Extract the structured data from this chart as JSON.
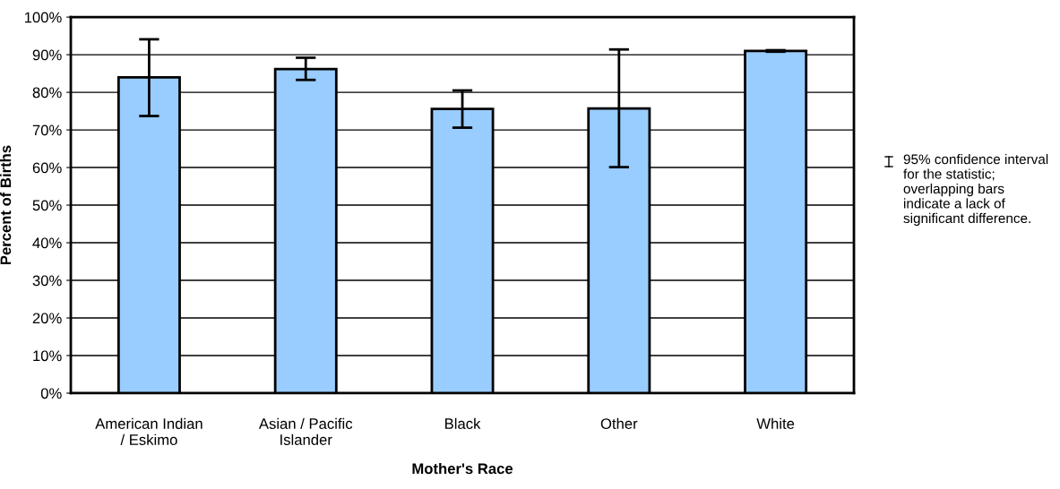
{
  "chart_data": {
    "type": "bar",
    "xlabel": "Mother's Race",
    "ylabel": "Percent of Births",
    "categories": [
      "American Indian / Eskimo",
      "Asian / Pacific Islander",
      "Black",
      "Other",
      "White"
    ],
    "values": [
      84.0,
      86.2,
      75.6,
      75.7,
      91.0
    ],
    "errors": [
      [
        73.7,
        94.1
      ],
      [
        83.3,
        89.2
      ],
      [
        70.6,
        80.5
      ],
      [
        60.1,
        91.4
      ],
      [
        90.8,
        91.2
      ]
    ],
    "color": "#99ccff",
    "ylim": [
      0,
      100
    ],
    "yticks": [
      {
        "value": 0,
        "label": "0%"
      },
      {
        "value": 10,
        "label": "10%"
      },
      {
        "value": 20,
        "label": "20%"
      },
      {
        "value": 30,
        "label": "30%"
      },
      {
        "value": 40,
        "label": "40%"
      },
      {
        "value": 50,
        "label": "50%"
      },
      {
        "value": 60,
        "label": "60%"
      },
      {
        "value": 70,
        "label": "70%"
      },
      {
        "value": 80,
        "label": "80%"
      },
      {
        "value": 90,
        "label": "90%"
      },
      {
        "value": 100,
        "label": "100%"
      }
    ],
    "grid": "y",
    "annotations": [
      "95% confidence interval for the statistic; overlapping bars indicate a lack of significant difference."
    ]
  }
}
